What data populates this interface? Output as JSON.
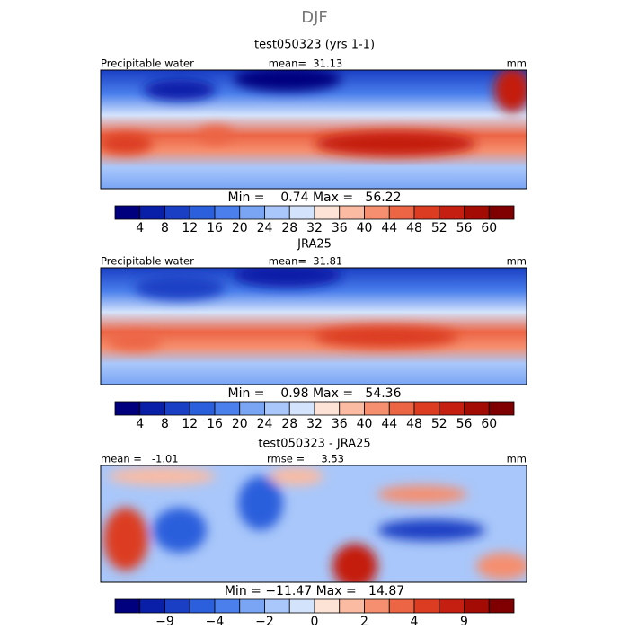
{
  "title": "DJF",
  "panels": [
    {
      "title": "test050323 (yrs 1-1)",
      "left": "Precipitable water",
      "center": "mean=  31.13",
      "right": "mm",
      "stats": "Min =    0.74 Max =   56.22",
      "colorbar": {
        "colors": [
          "#00007f",
          "#0a1fa8",
          "#1a3fc4",
          "#2b5fdc",
          "#4a7fec",
          "#7aa5f5",
          "#a9c7fa",
          "#d4e3fc",
          "#fde2d6",
          "#fbbba2",
          "#f58f6f",
          "#ec6545",
          "#dc3c22",
          "#c41f10",
          "#a30c05",
          "#7f0000"
        ],
        "labels": [
          "4",
          "8",
          "12",
          "16",
          "20",
          "24",
          "28",
          "32",
          "36",
          "40",
          "44",
          "48",
          "52",
          "56",
          "60"
        ]
      }
    },
    {
      "title": "JRA25",
      "left": "Precipitable water",
      "center": "mean=  31.81",
      "right": "mm",
      "stats": "Min =    0.98 Max =   54.36",
      "colorbar": {
        "colors": [
          "#00007f",
          "#0a1fa8",
          "#1a3fc4",
          "#2b5fdc",
          "#4a7fec",
          "#7aa5f5",
          "#a9c7fa",
          "#d4e3fc",
          "#fde2d6",
          "#fbbba2",
          "#f58f6f",
          "#ec6545",
          "#dc3c22",
          "#c41f10",
          "#a30c05",
          "#7f0000"
        ],
        "labels": [
          "4",
          "8",
          "12",
          "16",
          "20",
          "24",
          "28",
          "32",
          "36",
          "40",
          "44",
          "48",
          "52",
          "56",
          "60"
        ]
      }
    },
    {
      "title": "test050323 - JRA25",
      "left": "mean =   -1.01",
      "center": "rmse =     3.53",
      "right": "mm",
      "stats": "Min = −11.47 Max =   14.87",
      "colorbar": {
        "colors": [
          "#00007f",
          "#0a1fa8",
          "#1a3fc4",
          "#2b5fdc",
          "#4a7fec",
          "#7aa5f5",
          "#a9c7fa",
          "#d4e3fc",
          "#fde2d6",
          "#fbbba2",
          "#f58f6f",
          "#ec6545",
          "#dc3c22",
          "#c41f10",
          "#a30c05",
          "#7f0000"
        ],
        "labels": [
          null,
          "−9",
          null,
          "−4",
          null,
          "−2",
          null,
          "0",
          null,
          "2",
          null,
          "4",
          null,
          "9",
          null
        ]
      }
    }
  ]
}
